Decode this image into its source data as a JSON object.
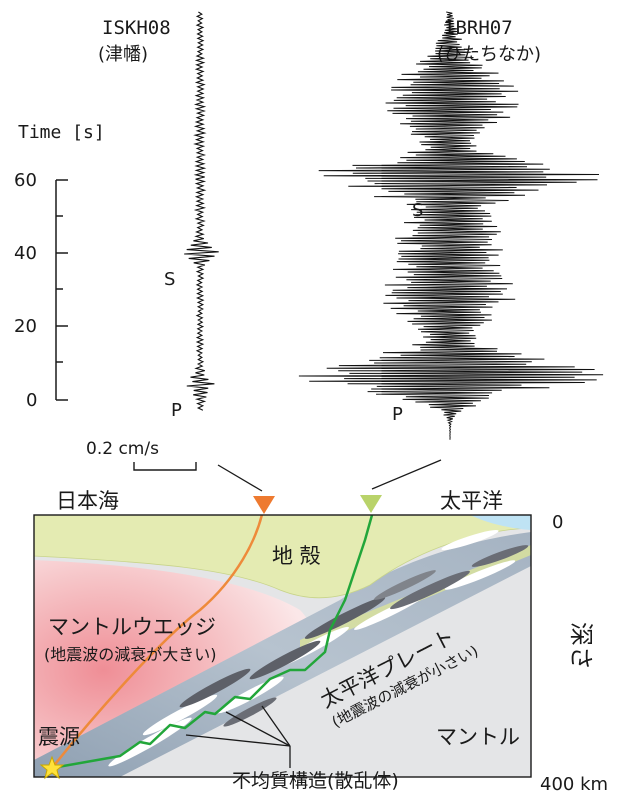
{
  "stations": {
    "left": {
      "code": "ISKH08",
      "name": "(津幡)"
    },
    "right": {
      "code": "IBRH07",
      "name": "(ひたちなか)"
    }
  },
  "time_axis": {
    "label": "Time [s]",
    "ticks": [
      "60",
      "40",
      "20",
      "0"
    ]
  },
  "phases": {
    "p_left": "P",
    "s_left": "S",
    "p_right": "P",
    "s_right": "S"
  },
  "scale_bar": "0.2 cm/s",
  "section": {
    "sea_west": "日本海",
    "sea_east": "太平洋",
    "crust": "地 殻",
    "wedge_title": "マントルウエッジ",
    "wedge_note": "(地震波の減衰が大きい)",
    "plate_title": "太平洋プレート",
    "plate_note": "(地震波の減衰が小さい)",
    "mantle": "マントル",
    "heterogeneity": "不均質構造(散乱体)",
    "hypocenter": "震源",
    "depth_label": "深さ",
    "depth_top": "0",
    "depth_bottom": "400 km"
  },
  "colors": {
    "left_path": "#ee8a3a",
    "right_path": "#22a63a",
    "crust": "#e3ebb0",
    "wedge": "#f2a0a6",
    "slab": "#aeb9c6",
    "sea": "#bfe3f4",
    "star": "#ffe23a"
  }
}
